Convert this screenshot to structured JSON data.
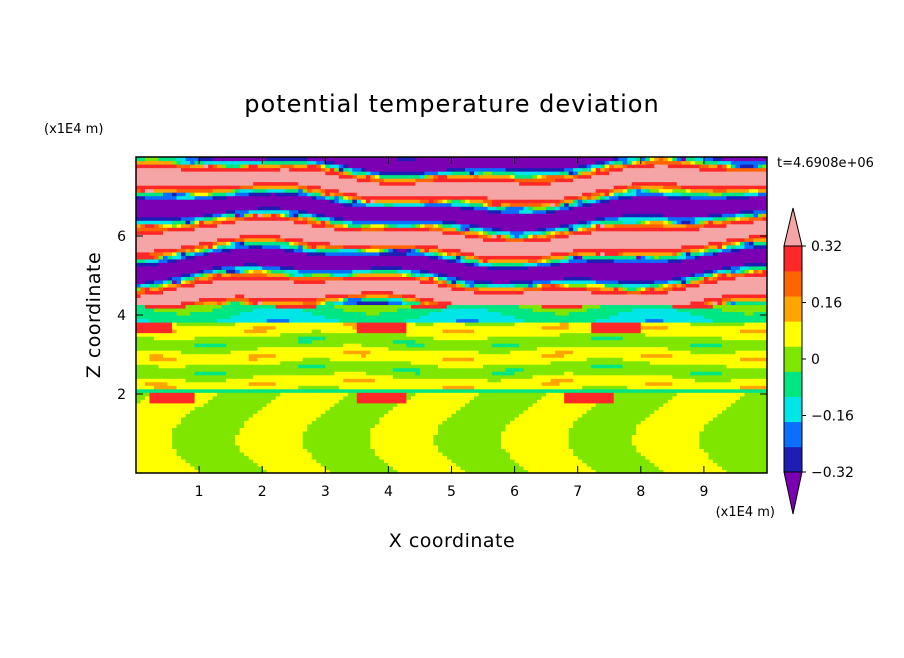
{
  "chart_data": {
    "type": "heatmap",
    "title": "potential temperature deviation",
    "xlabel": "X coordinate",
    "ylabel": "Z coordinate",
    "x_units": "(x1E4 m)",
    "y_units": "(x1E4 m)",
    "time_label": "t=4.6908e+06",
    "xlim": [
      0,
      10
    ],
    "ylim": [
      0,
      8
    ],
    "x_ticks": [
      "1",
      "2",
      "3",
      "4",
      "5",
      "6",
      "7",
      "8",
      "9"
    ],
    "y_ticks": [
      "2",
      "4",
      "6"
    ],
    "colorbar": {
      "levels": [
        -0.4,
        -0.32,
        -0.24,
        -0.16,
        -0.08,
        0,
        0.08,
        0.16,
        0.24,
        0.32,
        0.4
      ],
      "labels": [
        "0.32",
        "0.16",
        "0",
        "-0.16",
        "-0.32"
      ],
      "colors": [
        "#7b00b4",
        "#1e1eb4",
        "#0a6eff",
        "#00e6e6",
        "#00e682",
        "#7fe600",
        "#ffff00",
        "#ffa500",
        "#ff6400",
        "#ff2828",
        "#f5a5a5"
      ],
      "extend": "both"
    },
    "regions": [
      {
        "z_range": [
          4.3,
          8.0
        ],
        "pattern": "alternating bands",
        "values": [
          0.4,
          -0.4
        ]
      },
      {
        "z_range": [
          3.8,
          4.3
        ],
        "pattern": "transition layer",
        "values": [
          -0.24,
          -0.16
        ]
      },
      {
        "z_range": [
          2.0,
          3.8
        ],
        "pattern": "layered",
        "values": [
          -0.08,
          0.08
        ]
      },
      {
        "z_range": [
          0.0,
          2.0
        ],
        "pattern": "plumes",
        "values": [
          -0.08,
          0.08
        ]
      }
    ]
  }
}
